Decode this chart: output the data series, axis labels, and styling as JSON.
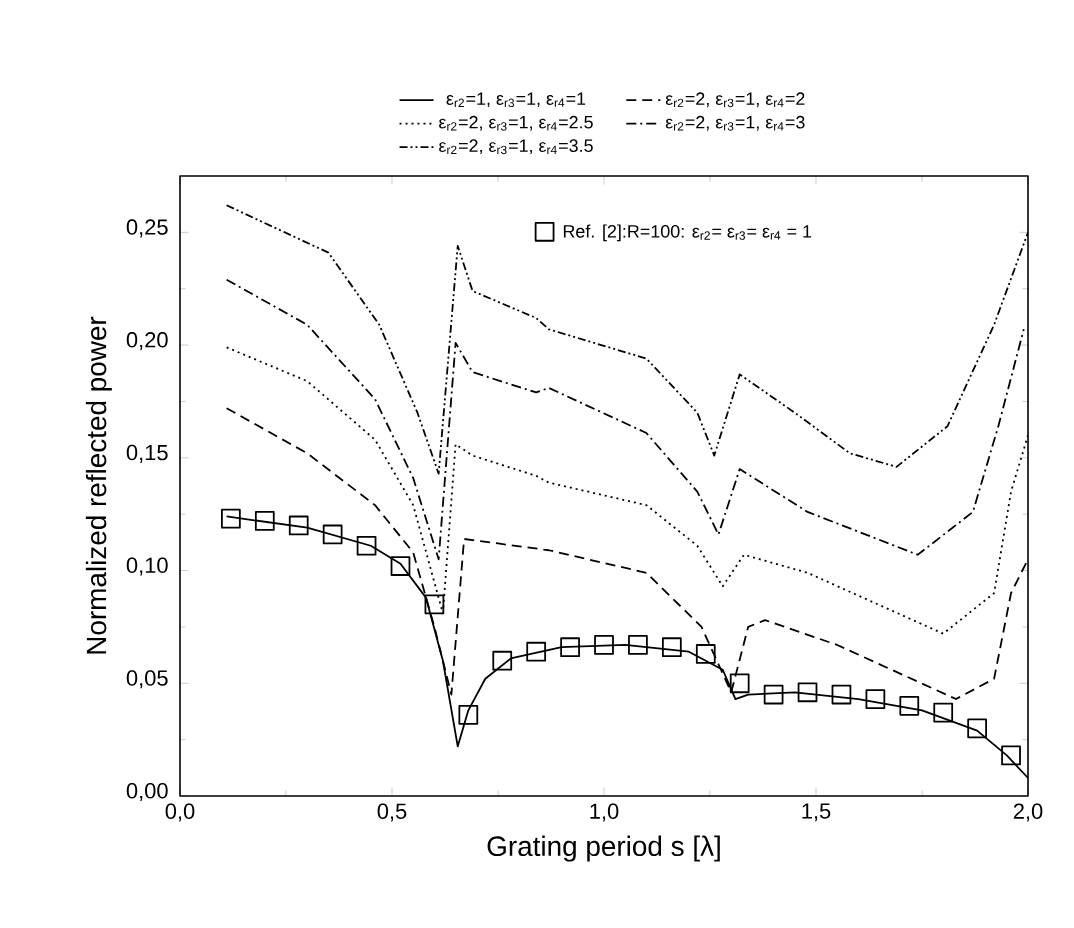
{
  "chart_data": {
    "type": "line",
    "xlabel": "Grating period  s [λ]",
    "ylabel": "Normalized reflected  power",
    "xlim": [
      0,
      2.0
    ],
    "ylim": [
      0,
      0.275
    ],
    "xticks": [
      {
        "value": 0,
        "label": "0,0"
      },
      {
        "value": 0.5,
        "label": "0,5"
      },
      {
        "value": 1.0,
        "label": "1,0"
      },
      {
        "value": 1.5,
        "label": "1,5"
      },
      {
        "value": 2.0,
        "label": "2,0"
      }
    ],
    "yticks": [
      {
        "value": 0,
        "label": "0,00"
      },
      {
        "value": 0.05,
        "label": "0,05"
      },
      {
        "value": 0.1,
        "label": "0,10"
      },
      {
        "value": 0.15,
        "label": "0,15"
      },
      {
        "value": 0.2,
        "label": "0,20"
      },
      {
        "value": 0.25,
        "label": "0,25"
      }
    ],
    "grid": false,
    "legend": "top",
    "series": [
      {
        "name": "ε$_{r2}$=1,  ε$_{r3}$=1,  ε$_{r4}$=1",
        "color": "#000000",
        "line_style": "solid",
        "x": [
          0.11,
          0.3,
          0.45,
          0.52,
          0.58,
          0.62,
          0.655,
          0.68,
          0.72,
          0.78,
          0.9,
          1.05,
          1.2,
          1.28,
          1.31,
          1.34,
          1.45,
          1.6,
          1.75,
          1.88,
          1.95,
          2.0
        ],
        "values": [
          0.124,
          0.119,
          0.111,
          0.103,
          0.088,
          0.06,
          0.022,
          0.038,
          0.052,
          0.061,
          0.066,
          0.067,
          0.064,
          0.056,
          0.043,
          0.045,
          0.046,
          0.043,
          0.038,
          0.029,
          0.018,
          0.008
        ]
      },
      {
        "name": "ε$_{r2}$=2,  ε$_{r3}$=1,  ε$_{r4}$=2",
        "color": "#000000",
        "line_style": "dashed",
        "x": [
          0.11,
          0.3,
          0.46,
          0.55,
          0.6,
          0.64,
          0.67,
          0.75,
          0.87,
          1.1,
          1.23,
          1.3,
          1.34,
          1.38,
          1.55,
          1.83,
          1.92,
          1.96,
          2.0
        ],
        "values": [
          0.172,
          0.152,
          0.129,
          0.108,
          0.075,
          0.045,
          0.114,
          0.112,
          0.109,
          0.099,
          0.075,
          0.046,
          0.075,
          0.078,
          0.067,
          0.043,
          0.052,
          0.09,
          0.105
        ]
      },
      {
        "name": "ε$_{r2}$=2,  ε$_{r3}$=1,  ε$_{r4}$=2.5",
        "color": "#000000",
        "line_style": "dotted",
        "x": [
          0.11,
          0.3,
          0.46,
          0.55,
          0.62,
          0.65,
          0.69,
          0.84,
          0.87,
          1.1,
          1.22,
          1.28,
          1.33,
          1.48,
          1.8,
          1.92,
          1.96,
          2.0
        ],
        "values": [
          0.199,
          0.184,
          0.158,
          0.129,
          0.081,
          0.156,
          0.151,
          0.142,
          0.139,
          0.129,
          0.111,
          0.093,
          0.107,
          0.099,
          0.072,
          0.09,
          0.135,
          0.16
        ]
      },
      {
        "name": "ε$_{r2}$=2,  ε$_{r3}$=1,  ε$_{r4}$=3",
        "color": "#000000",
        "line_style": "dashdot",
        "x": [
          0.11,
          0.3,
          0.46,
          0.55,
          0.61,
          0.65,
          0.69,
          0.84,
          0.87,
          1.1,
          1.22,
          1.27,
          1.32,
          1.48,
          1.74,
          1.87,
          1.93,
          1.99
        ],
        "values": [
          0.229,
          0.209,
          0.176,
          0.141,
          0.105,
          0.201,
          0.188,
          0.179,
          0.181,
          0.161,
          0.135,
          0.116,
          0.145,
          0.126,
          0.107,
          0.126,
          0.164,
          0.207
        ]
      },
      {
        "name": "ε$_{r2}$=2,  ε$_{r3}$=1,  ε$_{r4}$=3.5",
        "color": "#000000",
        "line_style": "dashdotdot",
        "x": [
          0.11,
          0.35,
          0.47,
          0.56,
          0.61,
          0.655,
          0.69,
          0.84,
          0.87,
          1.1,
          1.22,
          1.26,
          1.32,
          1.45,
          1.58,
          1.69,
          1.81,
          1.92,
          2.0
        ],
        "values": [
          0.262,
          0.241,
          0.209,
          0.17,
          0.143,
          0.244,
          0.224,
          0.212,
          0.207,
          0.194,
          0.17,
          0.151,
          0.187,
          0.17,
          0.152,
          0.146,
          0.164,
          0.209,
          0.25
        ]
      },
      {
        "type": "scatter",
        "name": "Ref. [2]:R=100: ε$_{r2}$= ε$_{r3}$= ε$_{r4}$ = 1",
        "color": "#000000",
        "marker": "square",
        "x": [
          0.12,
          0.2,
          0.28,
          0.36,
          0.44,
          0.52,
          0.6,
          0.68,
          0.76,
          0.84,
          0.92,
          1.0,
          1.08,
          1.16,
          1.24,
          1.32,
          1.4,
          1.48,
          1.56,
          1.64,
          1.72,
          1.8,
          1.88,
          1.96
        ],
        "values": [
          0.123,
          0.122,
          0.12,
          0.116,
          0.111,
          0.102,
          0.085,
          0.036,
          0.06,
          0.064,
          0.066,
          0.067,
          0.067,
          0.066,
          0.063,
          0.05,
          0.045,
          0.046,
          0.045,
          0.043,
          0.04,
          0.037,
          0.03,
          0.018
        ]
      }
    ]
  }
}
